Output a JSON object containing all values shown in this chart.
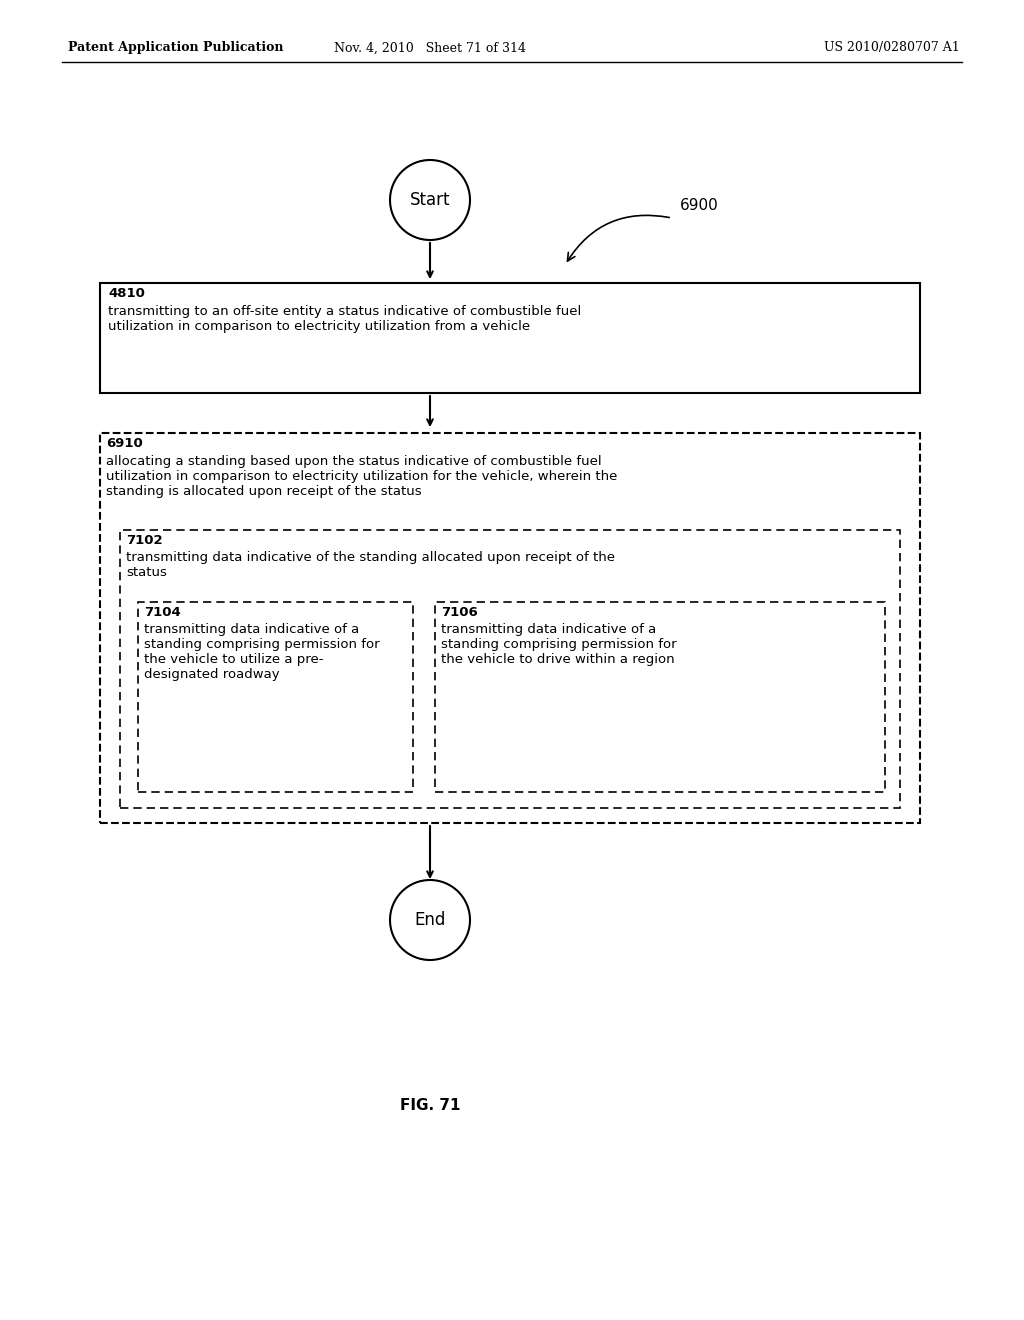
{
  "header_left": "Patent Application Publication",
  "header_mid": "Nov. 4, 2010   Sheet 71 of 314",
  "header_right": "US 2010/0280707 A1",
  "label_6900": "6900",
  "label_start": "Start",
  "label_end": "End",
  "label_4810": "4810",
  "text_4810": "transmitting to an off-site entity a status indicative of combustible fuel\nutilization in comparison to electricity utilization from a vehicle",
  "label_6910": "6910",
  "text_6910": "allocating a standing based upon the status indicative of combustible fuel\nutilization in comparison to electricity utilization for the vehicle, wherein the\nstanding is allocated upon receipt of the status",
  "label_7102": "7102",
  "text_7102": "transmitting data indicative of the standing allocated upon receipt of the\nstatus",
  "label_7104": "7104",
  "text_7104": "transmitting data indicative of a\nstanding comprising permission for\nthe vehicle to utilize a pre-\ndesignated roadway",
  "label_7106": "7106",
  "text_7106": "transmitting data indicative of a\nstanding comprising permission for\nthe vehicle to drive within a region",
  "fig_label": "FIG. 71",
  "bg_color": "#ffffff",
  "text_color": "#000000",
  "box_edge_color": "#000000",
  "dashed_color": "#000000"
}
